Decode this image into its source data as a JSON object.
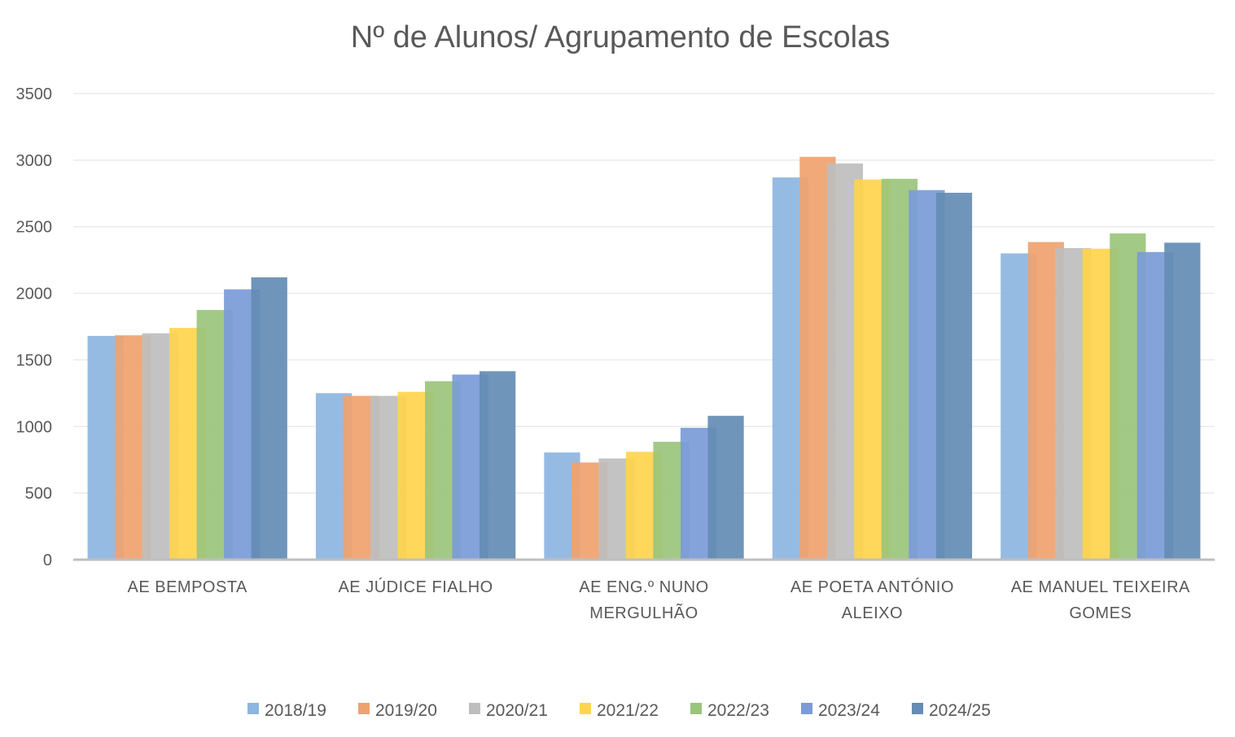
{
  "chart_data": {
    "type": "bar",
    "title": "Nº de Alunos/ Agrupamento de Escolas",
    "xlabel": "",
    "ylabel": "",
    "ylim": [
      0,
      3500
    ],
    "yticks": [
      "0",
      "500",
      "1000",
      "1500",
      "2000",
      "2500",
      "3000",
      "3500"
    ],
    "ytick_values": [
      0,
      500,
      1000,
      1500,
      2000,
      2500,
      3000,
      3500
    ],
    "grid": true,
    "legend_position": "bottom",
    "categories": [
      [
        "AE BEMPOSTA"
      ],
      [
        "AE JÚDICE FIALHO"
      ],
      [
        "AE ENG.º NUNO",
        "MERGULHÃO"
      ],
      [
        "AE POETA ANTÓNIO",
        "ALEIXO"
      ],
      [
        "AE MANUEL TEIXEIRA",
        "GOMES"
      ]
    ],
    "series": [
      {
        "name": "2018/19",
        "color": "#8db5e1",
        "values": [
          1680,
          1250,
          805,
          2870,
          2300
        ]
      },
      {
        "name": "2019/20",
        "color": "#f0a26e",
        "values": [
          1685,
          1230,
          730,
          3025,
          2385
        ]
      },
      {
        "name": "2020/21",
        "color": "#bebebe",
        "values": [
          1700,
          1230,
          760,
          2975,
          2340
        ]
      },
      {
        "name": "2021/22",
        "color": "#ffd54d",
        "values": [
          1740,
          1260,
          810,
          2855,
          2335
        ]
      },
      {
        "name": "2022/23",
        "color": "#9bc47c",
        "values": [
          1875,
          1340,
          885,
          2860,
          2450
        ]
      },
      {
        "name": "2023/24",
        "color": "#7b9bd8",
        "values": [
          2030,
          1390,
          990,
          2775,
          2310
        ]
      },
      {
        "name": "2024/25",
        "color": "#648cb4",
        "values": [
          2120,
          1415,
          1080,
          2755,
          2380
        ]
      }
    ]
  }
}
